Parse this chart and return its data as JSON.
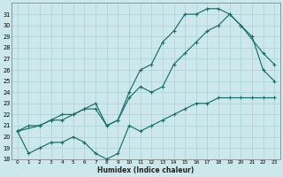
{
  "xlabel": "Humidex (Indice chaleur)",
  "background_color": "#cce8ec",
  "grid_color": "#b0d4d8",
  "line_color": "#1a6e6a",
  "xlim": [
    -0.5,
    23.5
  ],
  "ylim": [
    18,
    32
  ],
  "yticks": [
    18,
    19,
    20,
    21,
    22,
    23,
    24,
    25,
    26,
    27,
    28,
    29,
    30,
    31
  ],
  "xticks": [
    0,
    1,
    2,
    3,
    4,
    5,
    6,
    7,
    8,
    9,
    10,
    11,
    12,
    13,
    14,
    15,
    16,
    17,
    18,
    19,
    20,
    21,
    22,
    23
  ],
  "line_min_x": [
    0,
    1,
    2,
    3,
    4,
    5,
    6,
    7,
    8,
    9,
    10,
    11,
    12,
    13,
    14,
    15,
    16,
    17,
    18,
    19,
    20,
    21,
    22,
    23
  ],
  "line_min_y": [
    20.5,
    18.5,
    19.0,
    19.5,
    19.5,
    20.0,
    19.5,
    18.5,
    18.0,
    18.5,
    21.0,
    20.5,
    21.0,
    21.5,
    22.0,
    22.5,
    23.0,
    23.0,
    23.5,
    23.5,
    23.5,
    23.5,
    23.5,
    23.5
  ],
  "line_max_x": [
    0,
    1,
    2,
    3,
    4,
    5,
    6,
    7,
    8,
    9,
    10,
    11,
    12,
    13,
    14,
    15,
    16,
    17,
    18,
    19,
    20,
    21,
    22,
    23
  ],
  "line_max_y": [
    20.5,
    21.0,
    21.0,
    21.5,
    22.0,
    22.0,
    22.5,
    22.5,
    21.0,
    21.5,
    24.0,
    26.0,
    26.5,
    28.5,
    29.5,
    31.0,
    31.0,
    31.5,
    31.5,
    31.0,
    30.0,
    29.0,
    26.0,
    25.0
  ],
  "line_mid_x": [
    0,
    2,
    3,
    4,
    5,
    6,
    7,
    8,
    9,
    10,
    11,
    12,
    13,
    14,
    15,
    16,
    17,
    18,
    19,
    20,
    22,
    23
  ],
  "line_mid_y": [
    20.5,
    21.0,
    21.5,
    21.5,
    22.0,
    22.5,
    23.0,
    21.0,
    21.5,
    23.5,
    24.5,
    24.0,
    24.5,
    26.5,
    27.5,
    28.5,
    29.5,
    30.0,
    31.0,
    30.0,
    27.5,
    26.5
  ]
}
